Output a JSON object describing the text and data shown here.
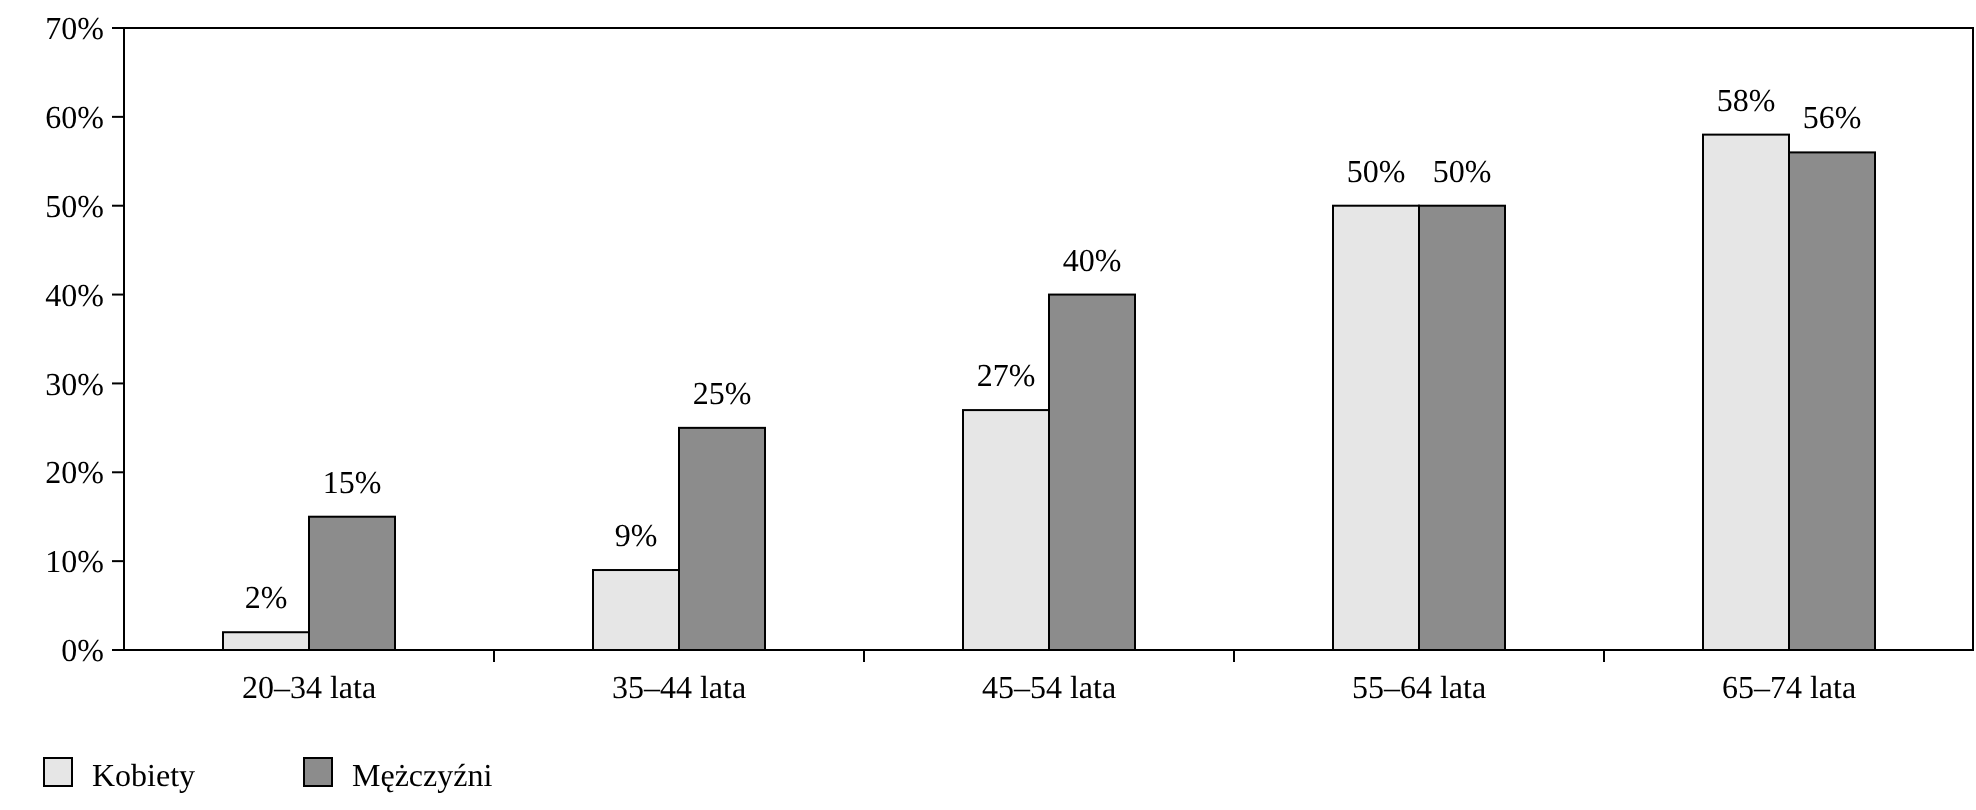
{
  "chart_data": {
    "type": "bar",
    "categories": [
      "20–34 lata",
      "35–44 lata",
      "45–54 lata",
      "55–64 lata",
      "65–74 lata"
    ],
    "series": [
      {
        "name": "Kobiety",
        "color": "#e6e6e6",
        "values": [
          2,
          9,
          27,
          50,
          58
        ],
        "value_labels": [
          "2%",
          "9%",
          "27%",
          "50%",
          "58%"
        ]
      },
      {
        "name": "Mężczyźni",
        "color": "#8c8c8c",
        "values": [
          15,
          25,
          40,
          50,
          56
        ],
        "value_labels": [
          "15%",
          "25%",
          "40%",
          "50%",
          "56%"
        ]
      }
    ],
    "ylim": [
      0,
      70
    ],
    "yticks": [
      {
        "value": 0,
        "label": "0%"
      },
      {
        "value": 10,
        "label": "10%"
      },
      {
        "value": 20,
        "label": "20%"
      },
      {
        "value": 30,
        "label": "30%"
      },
      {
        "value": 40,
        "label": "40%"
      },
      {
        "value": 50,
        "label": "50%"
      },
      {
        "value": 60,
        "label": "60%"
      },
      {
        "value": 70,
        "label": "70%"
      }
    ],
    "grid": false,
    "legend": "bottom left"
  }
}
